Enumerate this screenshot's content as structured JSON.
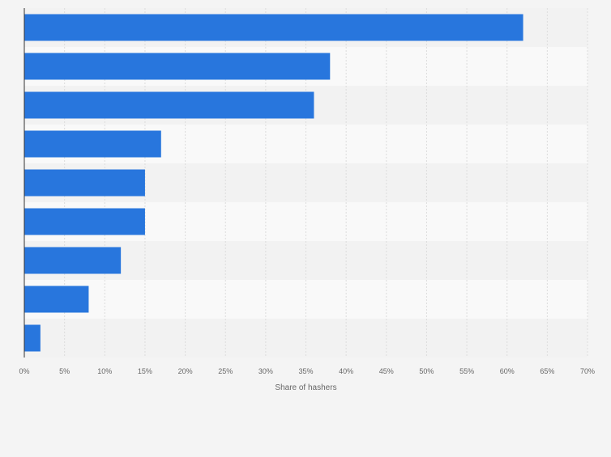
{
  "chart_data": {
    "type": "bar",
    "orientation": "horizontal",
    "categories": [
      "",
      "",
      "",
      "",
      "",
      "",
      "",
      "",
      ""
    ],
    "values": [
      62,
      38,
      36,
      17,
      15,
      15,
      12,
      8,
      2
    ],
    "xlabel": "Share of hashers",
    "ylabel": "",
    "xlim": [
      0,
      70
    ],
    "xticks": [
      "0%",
      "5%",
      "10%",
      "15%",
      "20%",
      "25%",
      "30%",
      "35%",
      "40%",
      "45%",
      "50%",
      "55%",
      "60%",
      "65%",
      "70%"
    ],
    "grid": true,
    "bar_color": "#2876dd",
    "band_colors": [
      "#f2f2f2",
      "#f9f9f9"
    ]
  }
}
